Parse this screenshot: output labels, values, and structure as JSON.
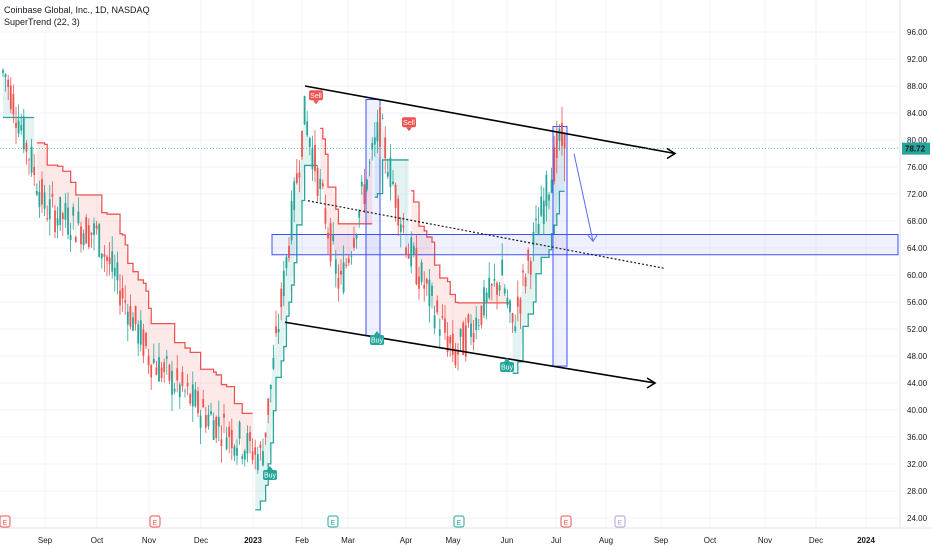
{
  "header": {
    "title": "Coinbase Global, Inc., 1D, NASDAQ",
    "indicator": "SuperTrend (22, 3)"
  },
  "colors": {
    "up": "#26a69a",
    "down": "#ef5350",
    "supertrend_up": "#26a69a",
    "supertrend_down": "#ef5350",
    "zone": "#3f51f5",
    "last_price": "#26a69a"
  },
  "chart_data": {
    "type": "candlestick",
    "ylim": [
      24,
      100
    ],
    "y_ticks": [
      "96.00",
      "92.00",
      "88.00",
      "84.00",
      "80.00",
      "76.00",
      "72.00",
      "68.00",
      "64.00",
      "60.00",
      "56.00",
      "52.00",
      "48.00",
      "44.00",
      "40.00",
      "36.00",
      "32.00",
      "28.00",
      "24.00"
    ],
    "x_ticks": [
      "Sep",
      "Oct",
      "Nov",
      "Dec",
      "2023",
      "Feb",
      "Mar",
      "Apr",
      "May",
      "Jun",
      "Jul",
      "Aug",
      "Sep",
      "Oct",
      "Nov",
      "Dec",
      "2024"
    ],
    "last_price": "78.72",
    "price_path_approx": [
      {
        "t": "Aug 2022",
        "price": 90
      },
      {
        "t": "Sep 2022",
        "price": 70
      },
      {
        "t": "Oct 2022",
        "price": 66
      },
      {
        "t": "Nov 2022",
        "price": 48
      },
      {
        "t": "Dec 2022",
        "price": 40
      },
      {
        "t": "2023",
        "price": 33
      },
      {
        "t": "Feb 2023",
        "price": 84
      },
      {
        "t": "Mar 2023",
        "price": 58
      },
      {
        "t": "Mar 2023",
        "price": 82
      },
      {
        "t": "Apr 2023",
        "price": 64
      },
      {
        "t": "May 2023",
        "price": 48
      },
      {
        "t": "Jun 2023",
        "price": 60
      },
      {
        "t": "Jun 2023",
        "price": 52
      },
      {
        "t": "Jul 2023",
        "price": 80
      },
      {
        "t": "Jul 2023",
        "price": 78.72
      }
    ],
    "signals": [
      {
        "label": "Buy",
        "date": "2023",
        "price": 32
      },
      {
        "label": "Sell",
        "date": "Feb",
        "price": 85
      },
      {
        "label": "Buy",
        "date": "Mar",
        "price": 52
      },
      {
        "label": "Sell",
        "date": "Apr",
        "price": 81
      },
      {
        "label": "Buy",
        "date": "Jun",
        "price": 48
      }
    ],
    "event_markers": [
      "E",
      "E",
      "E",
      "E",
      "E",
      "E"
    ],
    "annotations": {
      "channel_upper": [
        {
          "date": "Feb 2023",
          "price": 88
        },
        {
          "date": "Aug 2023",
          "price": 78
        }
      ],
      "channel_lower": [
        {
          "date": "Feb 2023",
          "price": 53
        },
        {
          "date": "Aug 2023",
          "price": 44
        }
      ],
      "dotted_trendline": [
        {
          "date": "Feb 2023",
          "price": 71
        },
        {
          "date": "Aug 2023",
          "price": 61
        }
      ],
      "support_zone": [
        63,
        66
      ],
      "projection_arrow": [
        {
          "date": "Jul 2023",
          "price": 78
        },
        {
          "date": "Jul 2023",
          "price": 65
        }
      ]
    }
  }
}
